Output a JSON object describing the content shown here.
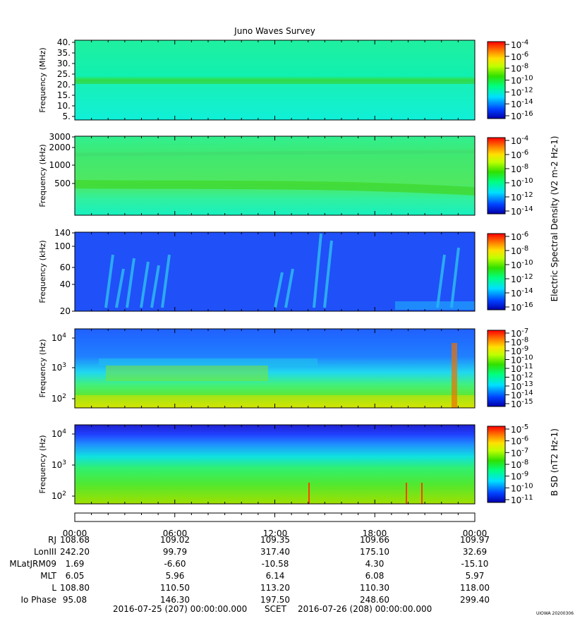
{
  "title": "Juno Waves Survey",
  "panels": [
    {
      "ylabel": "Frequency (MHz)",
      "yticks": [
        "40.",
        "35.",
        "30.",
        "25.",
        "20.",
        "15.",
        "10.",
        "5."
      ],
      "cbar_ticks": [
        "10-4",
        "10-6",
        "10-8",
        "10-10",
        "10-12",
        "10-14",
        "10-16"
      ],
      "cbar_exps": [
        "-4",
        "-6",
        "-8",
        "-10",
        "-12",
        "-14",
        "-16"
      ]
    },
    {
      "ylabel": "Frequency (kHz)",
      "yticks": [
        "3000",
        "2000",
        "1000",
        "500"
      ],
      "cbar_exps": [
        "-4",
        "-6",
        "-8",
        "-10",
        "-12",
        "-14"
      ]
    },
    {
      "ylabel": "Frequency (kHz)",
      "yticks": [
        "140",
        "100",
        "60",
        "40",
        "20"
      ],
      "cbar_exps": [
        "-6",
        "-8",
        "-10",
        "-12",
        "-14",
        "-16"
      ]
    },
    {
      "ylabel": "Frequency (Hz)",
      "yticks_exp": [
        "4",
        "3",
        "2"
      ],
      "cbar_exps": [
        "-7",
        "-8",
        "-9",
        "-10",
        "-11",
        "-12",
        "-13",
        "-14",
        "-15"
      ]
    },
    {
      "ylabel": "Frequency (Hz)",
      "yticks_exp": [
        "4",
        "3",
        "2"
      ],
      "cbar_exps": [
        "-5",
        "-6",
        "-7",
        "-8",
        "-9",
        "-10",
        "-11"
      ]
    }
  ],
  "cbar_label_electric": "Electric Spectral Density (V2 m-2 Hz-1)",
  "cbar_label_magnetic": "B SD (nT2 Hz-1)",
  "time_ticks": [
    "00:00",
    "06:00",
    "12:00",
    "18:00",
    "00:00"
  ],
  "ephemeris": {
    "rows": [
      {
        "label": "RJ",
        "values": [
          "108.68",
          "109.02",
          "109.35",
          "109.66",
          "109.97"
        ]
      },
      {
        "label": "LonIII",
        "values": [
          "242.20",
          "99.79",
          "317.40",
          "175.10",
          "32.69"
        ]
      },
      {
        "label": "MLatJRM09",
        "values": [
          "1.69",
          "-6.60",
          "-10.58",
          "4.30",
          "-15.10"
        ]
      },
      {
        "label": "MLT",
        "values": [
          "6.05",
          "5.96",
          "6.14",
          "6.08",
          "5.97"
        ]
      },
      {
        "label": "L",
        "values": [
          "108.80",
          "110.50",
          "113.20",
          "110.30",
          "118.00"
        ]
      },
      {
        "label": "Io Phase",
        "values": [
          "95.08",
          "146.30",
          "197.50",
          "248.60",
          "299.40"
        ]
      }
    ]
  },
  "footer": {
    "start": "2016-07-25 (207) 00:00:00.000",
    "scet": "SCET",
    "end": "2016-07-26 (208) 00:00:00.000"
  },
  "credit": "UIOWA 20200306",
  "chart_data": {
    "type": "heatmap",
    "title": "Juno Waves Survey",
    "x_range": [
      "2016-07-25 00:00",
      "2016-07-26 00:00"
    ],
    "panels": [
      {
        "ylabel": "Frequency (MHz)",
        "ylim": [
          3,
          41
        ],
        "zlim": [
          1e-17,
          0.0001
        ],
        "zscale": "log",
        "colorbar_label": "Electric Spectral Density (V2 m-2 Hz-1)"
      },
      {
        "ylabel": "Frequency (kHz)",
        "ylim": [
          150,
          3000
        ],
        "yscale": "log",
        "zlim": [
          1e-15,
          0.0001
        ],
        "zscale": "log",
        "colorbar_label": "Electric Spectral Density (V2 m-2 Hz-1)"
      },
      {
        "ylabel": "Frequency (kHz)",
        "ylim": [
          20,
          140
        ],
        "yscale": "log",
        "zlim": [
          1e-16,
          1e-06
        ],
        "zscale": "log",
        "colorbar_label": "Electric Spectral Density (V2 m-2 Hz-1)"
      },
      {
        "ylabel": "Frequency (Hz)",
        "ylim": [
          50,
          20000
        ],
        "yscale": "log",
        "zlim": [
          1e-15,
          1e-07
        ],
        "zscale": "log",
        "colorbar_label": "Electric Spectral Density (V2 m-2 Hz-1)"
      },
      {
        "ylabel": "Frequency (Hz)",
        "ylim": [
          50,
          20000
        ],
        "yscale": "log",
        "zlim": [
          1e-11,
          1e-05
        ],
        "zscale": "log",
        "colorbar_label": "B SD (nT2 Hz-1)"
      }
    ]
  }
}
